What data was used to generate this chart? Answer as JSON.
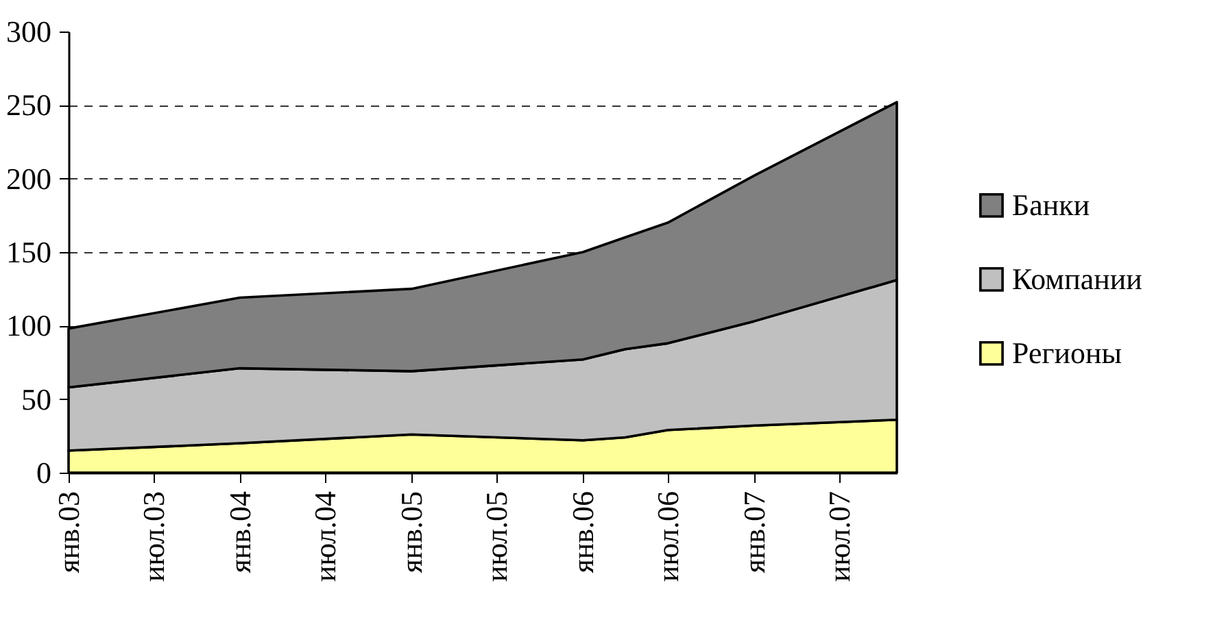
{
  "chart_data": {
    "type": "area",
    "stacked": true,
    "x": [
      "2003-01",
      "2004-01",
      "2005-01",
      "2006-01",
      "2006-04",
      "2006-07",
      "2007-01",
      "2007-11"
    ],
    "series": [
      {
        "name": "Регионы",
        "color": "#ffff99",
        "values": [
          15,
          20,
          26,
          22,
          24,
          29,
          32,
          36
        ]
      },
      {
        "name": "Компании",
        "color": "#c0c0c0",
        "values": [
          43,
          51,
          43,
          55,
          60,
          59,
          71,
          95
        ]
      },
      {
        "name": "Банки",
        "color": "#808080",
        "values": [
          40,
          48,
          56,
          73,
          76,
          82,
          99,
          121
        ]
      }
    ],
    "xlim": [
      "2003-01",
      "2007-11"
    ],
    "xticks": [
      {
        "value": "2003-01",
        "label": "янв.03"
      },
      {
        "value": "2003-07",
        "label": "июл.03"
      },
      {
        "value": "2004-01",
        "label": "янв.04"
      },
      {
        "value": "2004-07",
        "label": "июл.04"
      },
      {
        "value": "2005-01",
        "label": "янв.05"
      },
      {
        "value": "2005-07",
        "label": "июл.05"
      },
      {
        "value": "2006-01",
        "label": "янв.06"
      },
      {
        "value": "2006-07",
        "label": "июл.06"
      },
      {
        "value": "2007-01",
        "label": "янв.07"
      },
      {
        "value": "2007-07",
        "label": "июл.07"
      }
    ],
    "ylim": [
      0,
      300
    ],
    "yticks": [
      0,
      50,
      100,
      150,
      200,
      250,
      300
    ],
    "grid": "y",
    "legend": "right"
  }
}
